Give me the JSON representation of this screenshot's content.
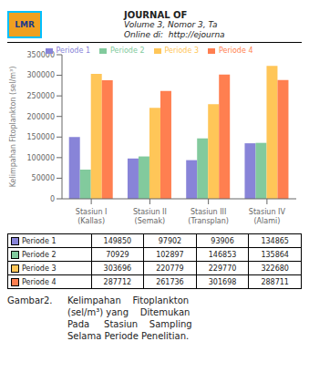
{
  "chart_data": {
    "type": "bar",
    "categories": [
      "Stasiun I (Kallas)",
      "Stasiun II (Semak)",
      "Stasiun III\n(Transplan)",
      "Stasiun IV (Alami)"
    ],
    "series": [
      {
        "name": "Periode 1",
        "color": "#8884d8",
        "values": [
          149850,
          97902,
          93906,
          134865
        ]
      },
      {
        "name": "Periode 2",
        "color": "#82ca9d",
        "values": [
          70929,
          102897,
          146853,
          135864
        ]
      },
      {
        "name": "Periode 3",
        "color": "#ffc658",
        "values": [
          303696,
          220779,
          229770,
          322680
        ]
      },
      {
        "name": "Periode 4",
        "color": "#ff7f50",
        "values": [
          287712,
          261736,
          301698,
          288711
        ]
      }
    ],
    "ylabel": "Kelimpahan Fitoplankton (sel/m³)",
    "ylim": [
      0,
      350000
    ],
    "yticks": [
      0,
      50000,
      100000,
      150000,
      200000,
      250000,
      300000,
      350000
    ],
    "grid": false,
    "legend": "top",
    "annotations": [
      "LMR",
      "JOURNAL OF",
      "Volume 3, Nomor 3, Ta",
      "Online di:  http://ejourna",
      "Gambar",
      "2.",
      "Kelimpahan    Fitoplankton\n(sel/m³) yang    Ditemukan\nPada     Stasiun    Sampling\nSelama Periode Penelitian."
    ]
  }
}
